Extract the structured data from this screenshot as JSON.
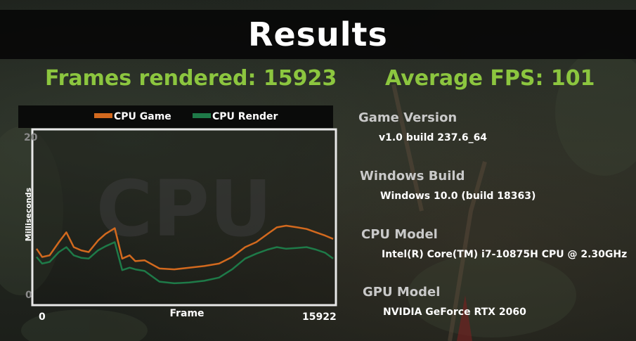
{
  "header": {
    "title": "Results"
  },
  "summary": {
    "frames_rendered": "Frames rendered: 15923",
    "average_fps": "Average FPS: 101"
  },
  "chart_data": {
    "type": "line",
    "watermark": "CPU",
    "xlabel": "Frame",
    "ylabel": "Milliseconds",
    "xlim": [
      0,
      15922
    ],
    "ylim": [
      0,
      20
    ],
    "x_tick_labels": [
      "0",
      "15922"
    ],
    "y_tick_labels": [
      "20",
      "0"
    ],
    "grid": false,
    "legend_position": "top",
    "series": [
      {
        "name": "CPU Game",
        "color": "#d2691e",
        "x": [
          0,
          300,
          700,
          1200,
          1600,
          2000,
          2400,
          2800,
          3300,
          3700,
          4200,
          4600,
          5000,
          5300,
          5800,
          6600,
          7400,
          8200,
          9000,
          9800,
          10500,
          11200,
          11800,
          12400,
          12900,
          13400,
          14000,
          14500,
          15000,
          15500,
          15922
        ],
        "y": [
          6.0,
          5.0,
          5.2,
          6.8,
          8.0,
          6.2,
          5.8,
          5.6,
          7.0,
          7.8,
          8.5,
          4.8,
          5.2,
          4.5,
          4.6,
          3.6,
          3.5,
          3.7,
          3.9,
          4.2,
          5.0,
          6.2,
          6.8,
          7.8,
          8.6,
          8.8,
          8.6,
          8.4,
          8.0,
          7.6,
          7.2
        ]
      },
      {
        "name": "CPU Render",
        "color": "#1e7a48",
        "x": [
          0,
          300,
          700,
          1200,
          1600,
          2000,
          2400,
          2800,
          3300,
          3700,
          4200,
          4600,
          5000,
          5300,
          5800,
          6600,
          7400,
          8200,
          9000,
          9800,
          10500,
          11200,
          11800,
          12400,
          12900,
          13400,
          14000,
          14500,
          15000,
          15500,
          15922
        ],
        "y": [
          5.0,
          4.2,
          4.4,
          5.6,
          6.2,
          5.2,
          4.9,
          4.8,
          5.8,
          6.3,
          6.8,
          3.4,
          3.7,
          3.5,
          3.3,
          2.0,
          1.8,
          1.9,
          2.1,
          2.5,
          3.5,
          4.8,
          5.4,
          5.9,
          6.2,
          6.0,
          6.1,
          6.2,
          5.9,
          5.5,
          4.8
        ]
      }
    ]
  },
  "info": {
    "game_version_label": "Game Version",
    "game_version_value": "v1.0 build 237.6_64",
    "windows_build_label": "Windows Build",
    "windows_build_value": "Windows 10.0 (build 18363)",
    "cpu_model_label": "CPU Model",
    "cpu_model_value": "Intel(R) Core(TM) i7-10875H CPU @ 2.30GHz",
    "gpu_model_label": "GPU Model",
    "gpu_model_value": "NVIDIA GeForce RTX 2060"
  }
}
